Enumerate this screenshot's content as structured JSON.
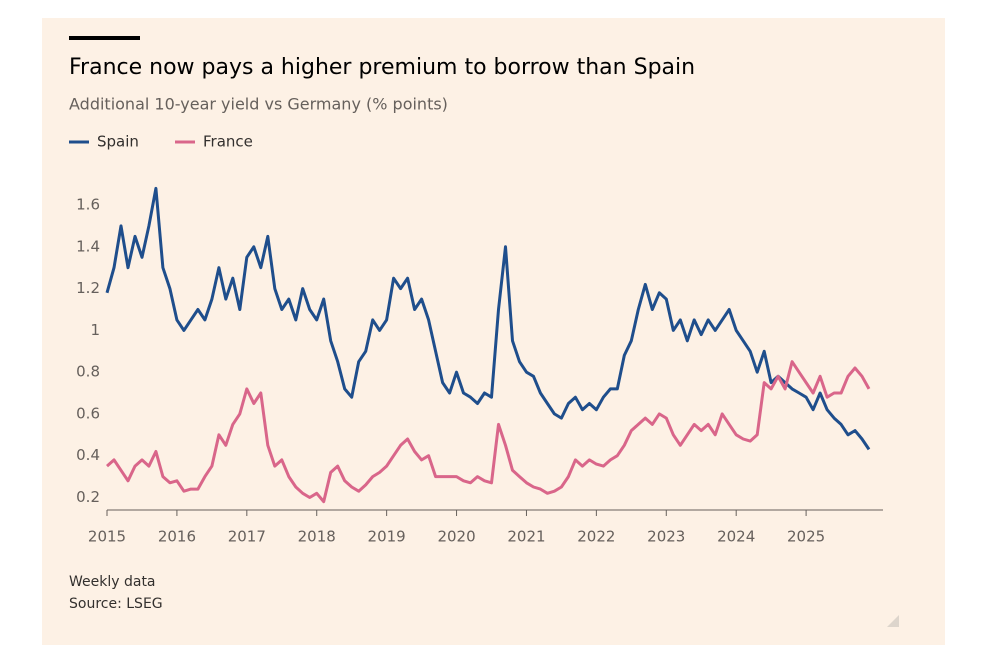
{
  "chart_data": {
    "type": "line",
    "title": "France now pays a higher premium to borrow than Spain",
    "subtitle": "Additional 10-year yield vs Germany (% points)",
    "notes": [
      "Weekly data",
      "Source: LSEG"
    ],
    "legend": "top-left",
    "grid": false,
    "xlim": [
      2015,
      2026.1
    ],
    "xticks": [
      2015,
      2016,
      2017,
      2018,
      2019,
      2020,
      2021,
      2022,
      2023,
      2024,
      2025
    ],
    "ylim": [
      0.14,
      1.72
    ],
    "yticks": [
      0.2,
      0.4,
      0.6,
      0.8,
      1.0,
      {
        "value": 1.2,
        "label": "1.2"
      },
      1.4,
      1.6
    ],
    "x": [
      2015.0,
      2015.1,
      2015.2,
      2015.3,
      2015.4,
      2015.5,
      2015.6,
      2015.7,
      2015.8,
      2015.9,
      2016.0,
      2016.1,
      2016.2,
      2016.3,
      2016.4,
      2016.5,
      2016.6,
      2016.7,
      2016.8,
      2016.9,
      2017.0,
      2017.1,
      2017.2,
      2017.3,
      2017.4,
      2017.5,
      2017.6,
      2017.7,
      2017.8,
      2017.9,
      2018.0,
      2018.1,
      2018.2,
      2018.3,
      2018.4,
      2018.5,
      2018.6,
      2018.7,
      2018.8,
      2018.9,
      2019.0,
      2019.1,
      2019.2,
      2019.3,
      2019.4,
      2019.5,
      2019.6,
      2019.7,
      2019.8,
      2019.9,
      2020.0,
      2020.1,
      2020.2,
      2020.3,
      2020.4,
      2020.5,
      2020.6,
      2020.7,
      2020.8,
      2020.9,
      2021.0,
      2021.1,
      2021.2,
      2021.3,
      2021.4,
      2021.5,
      2021.6,
      2021.7,
      2021.8,
      2021.9,
      2022.0,
      2022.1,
      2022.2,
      2022.3,
      2022.4,
      2022.5,
      2022.6,
      2022.7,
      2022.8,
      2022.9,
      2023.0,
      2023.1,
      2023.2,
      2023.3,
      2023.4,
      2023.5,
      2023.6,
      2023.7,
      2023.8,
      2023.9,
      2024.0,
      2024.1,
      2024.2,
      2024.3,
      2024.4,
      2024.5,
      2024.6,
      2024.7,
      2024.8,
      2024.9,
      2025.0,
      2025.1,
      2025.2,
      2025.3,
      2025.4,
      2025.5,
      2025.6,
      2025.7,
      2025.8,
      2025.9
    ],
    "series": [
      {
        "name": "Spain",
        "color": "#1f4e8c",
        "values": [
          1.18,
          1.3,
          1.5,
          1.3,
          1.45,
          1.35,
          1.5,
          1.68,
          1.3,
          1.2,
          1.05,
          1.0,
          1.05,
          1.1,
          1.05,
          1.15,
          1.3,
          1.15,
          1.25,
          1.1,
          1.35,
          1.4,
          1.3,
          1.45,
          1.2,
          1.1,
          1.15,
          1.05,
          1.2,
          1.1,
          1.05,
          1.15,
          0.95,
          0.85,
          0.72,
          0.68,
          0.85,
          0.9,
          1.05,
          1.0,
          1.05,
          1.25,
          1.2,
          1.25,
          1.1,
          1.15,
          1.05,
          0.9,
          0.75,
          0.7,
          0.8,
          0.7,
          0.68,
          0.65,
          0.7,
          0.68,
          1.1,
          1.4,
          0.95,
          0.85,
          0.8,
          0.78,
          0.7,
          0.65,
          0.6,
          0.58,
          0.65,
          0.68,
          0.62,
          0.65,
          0.62,
          0.68,
          0.72,
          0.72,
          0.88,
          0.95,
          1.1,
          1.22,
          1.1,
          1.18,
          1.15,
          1.0,
          1.05,
          0.95,
          1.05,
          0.98,
          1.05,
          1.0,
          1.05,
          1.1,
          1.0,
          0.95,
          0.9,
          0.8,
          0.9,
          0.75,
          0.78,
          0.75,
          0.72,
          0.7,
          0.68,
          0.62,
          0.7,
          0.62,
          0.58,
          0.55,
          0.5,
          0.52,
          0.48,
          0.43
        ]
      },
      {
        "name": "France",
        "color": "#d9668a",
        "values": [
          0.35,
          0.38,
          0.33,
          0.28,
          0.35,
          0.38,
          0.35,
          0.42,
          0.3,
          0.27,
          0.28,
          0.23,
          0.24,
          0.24,
          0.3,
          0.35,
          0.5,
          0.45,
          0.55,
          0.6,
          0.72,
          0.65,
          0.7,
          0.45,
          0.35,
          0.38,
          0.3,
          0.25,
          0.22,
          0.2,
          0.22,
          0.18,
          0.32,
          0.35,
          0.28,
          0.25,
          0.23,
          0.26,
          0.3,
          0.32,
          0.35,
          0.4,
          0.45,
          0.48,
          0.42,
          0.38,
          0.4,
          0.3,
          0.3,
          0.3,
          0.3,
          0.28,
          0.27,
          0.3,
          0.28,
          0.27,
          0.55,
          0.45,
          0.33,
          0.3,
          0.27,
          0.25,
          0.24,
          0.22,
          0.23,
          0.25,
          0.3,
          0.38,
          0.35,
          0.38,
          0.36,
          0.35,
          0.38,
          0.4,
          0.45,
          0.52,
          0.55,
          0.58,
          0.55,
          0.6,
          0.58,
          0.5,
          0.45,
          0.5,
          0.55,
          0.52,
          0.55,
          0.5,
          0.6,
          0.55,
          0.5,
          0.48,
          0.47,
          0.5,
          0.75,
          0.72,
          0.78,
          0.72,
          0.85,
          0.8,
          0.75,
          0.7,
          0.78,
          0.68,
          0.7,
          0.7,
          0.78,
          0.82,
          0.78,
          0.72
        ]
      }
    ]
  }
}
